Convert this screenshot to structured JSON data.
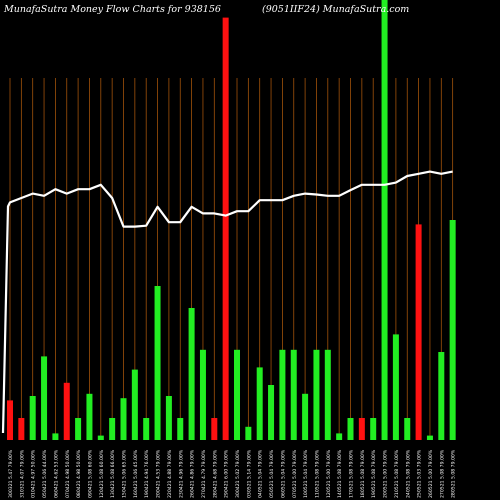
{
  "header": {
    "left": "MunafaSutra  Money Flow  Charts for 938156",
    "right": "(9051IIF24) MunafaSutra.com"
  },
  "chart_data": {
    "type": "bar",
    "title": "MunafaSutra  Money Flow  Charts for 938156",
    "subtitle": "(9051IIF24) MunafaSutra.com",
    "ylim": [
      0,
      100
    ],
    "colors": {
      "up": "#22ee22",
      "down": "#ff1111",
      "line": "#ffffff",
      "grid": "#a0520a",
      "background": "#000000"
    },
    "bars": [
      {
        "label": "300321 5.47 79.00%",
        "value": 9,
        "dir": "down"
      },
      {
        "label": "310321 4.07 79.00%",
        "value": 5,
        "dir": "down"
      },
      {
        "label": "010421 4.97 50.00%",
        "value": 10,
        "dir": "up"
      },
      {
        "label": "050421 5.06 44.00%",
        "value": 19,
        "dir": "up"
      },
      {
        "label": "060421 4.62 53.00%",
        "value": 1.5,
        "dir": "up"
      },
      {
        "label": "070421 4.98 50.00%",
        "value": 13,
        "dir": "down"
      },
      {
        "label": "080421 4.98 50.00%",
        "value": 5,
        "dir": "up"
      },
      {
        "label": "090421 5.08 60.00%",
        "value": 10.5,
        "dir": "up"
      },
      {
        "label": "120421 5.08 60.00%",
        "value": 1,
        "dir": "up"
      },
      {
        "label": "130421 5.08 66.00%",
        "value": 5,
        "dir": "up"
      },
      {
        "label": "150421 5.06 65.00%",
        "value": 9.5,
        "dir": "up"
      },
      {
        "label": "160421 5.06 45.00%",
        "value": 16,
        "dir": "up"
      },
      {
        "label": "190421 4.94 76.00%",
        "value": 5,
        "dir": "up"
      },
      {
        "label": "200421 4.53 79.00%",
        "value": 35,
        "dir": "up"
      },
      {
        "label": "220421 4.88 79.00%",
        "value": 10,
        "dir": "up"
      },
      {
        "label": "230421 4.96 79.00%",
        "value": 5,
        "dir": "up"
      },
      {
        "label": "260421 4.86 79.00%",
        "value": 30,
        "dir": "up"
      },
      {
        "label": "270421 4.79 79.00%",
        "value": 20.5,
        "dir": "up"
      },
      {
        "label": "280421 4.68 79.00%",
        "value": 5,
        "dir": "down"
      },
      {
        "label": "290421 6.00 79.00%",
        "value": 96,
        "dir": "down"
      },
      {
        "label": "300421 5.02 79.00%",
        "value": 20.5,
        "dir": "up"
      },
      {
        "label": "030521 5.14 79.00%",
        "value": 3,
        "dir": "up"
      },
      {
        "label": "040521 5.04 79.00%",
        "value": 16.5,
        "dir": "up"
      },
      {
        "label": "050521 5.04 79.00%",
        "value": 12.5,
        "dir": "up"
      },
      {
        "label": "060521 5.04 79.00%",
        "value": 20.5,
        "dir": "up"
      },
      {
        "label": "070521 5.00 79.00%",
        "value": 20.5,
        "dir": "up"
      },
      {
        "label": "100521 5.04 79.00%",
        "value": 10.5,
        "dir": "up"
      },
      {
        "label": "110521 5.08 79.00%",
        "value": 20.5,
        "dir": "up"
      },
      {
        "label": "120521 5.00 79.00%",
        "value": 20.5,
        "dir": "up"
      },
      {
        "label": "140521 5.08 79.00%",
        "value": 1.5,
        "dir": "up"
      },
      {
        "label": "170521 5.08 79.00%",
        "value": 5,
        "dir": "up"
      },
      {
        "label": "180521 5.08 79.00%",
        "value": 5,
        "dir": "down"
      },
      {
        "label": "190521 5.08 79.00%",
        "value": 5,
        "dir": "up"
      },
      {
        "label": "200521 5.00 79.00%",
        "value": 100,
        "dir": "up"
      },
      {
        "label": "210521 5.08 79.00%",
        "value": 24,
        "dir": "up"
      },
      {
        "label": "240521 5.08 79.00%",
        "value": 5,
        "dir": "up"
      },
      {
        "label": "250521 5.03 79.00%",
        "value": 49,
        "dir": "down"
      },
      {
        "label": "260521 5.00 79.00%",
        "value": 1,
        "dir": "up"
      },
      {
        "label": "270521 5.08 79.00%",
        "value": 20,
        "dir": "up"
      },
      {
        "label": "280521 5.08 79.00%",
        "value": 50,
        "dir": "up"
      }
    ],
    "line": [
      54,
      55,
      56,
      55.5,
      57,
      56,
      57,
      57,
      58,
      55,
      48.5,
      48.5,
      48.7,
      53,
      49.5,
      49.5,
      53,
      51.5,
      51.5,
      51,
      52,
      52,
      54.5,
      54.5,
      54.5,
      55.5,
      56,
      55.8,
      55.5,
      55.5,
      56.8,
      58,
      58,
      58,
      58.5,
      60,
      60.5,
      61,
      60.5,
      61
    ]
  }
}
